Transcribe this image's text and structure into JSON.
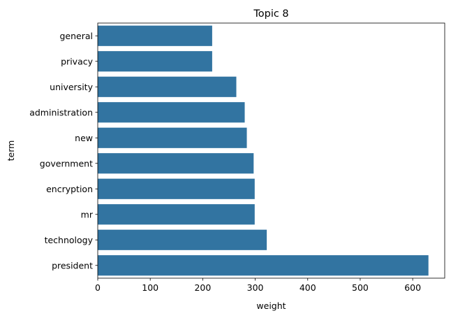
{
  "chart_data": {
    "type": "bar",
    "orientation": "horizontal",
    "title": "Topic 8",
    "xlabel": "weight",
    "ylabel": "term",
    "categories": [
      "general",
      "privacy",
      "university",
      "administration",
      "new",
      "government",
      "encryption",
      "mr",
      "technology",
      "president"
    ],
    "values": [
      218,
      218,
      264,
      280,
      284,
      297,
      299,
      299,
      322,
      630
    ],
    "xlim": [
      0,
      661
    ],
    "xticks": [
      0,
      100,
      200,
      300,
      400,
      500,
      600
    ],
    "xtick_labels": [
      "0",
      "100",
      "200",
      "300",
      "400",
      "500",
      "600"
    ],
    "bar_color": "#3274a1",
    "grid": false,
    "legend": "none"
  }
}
